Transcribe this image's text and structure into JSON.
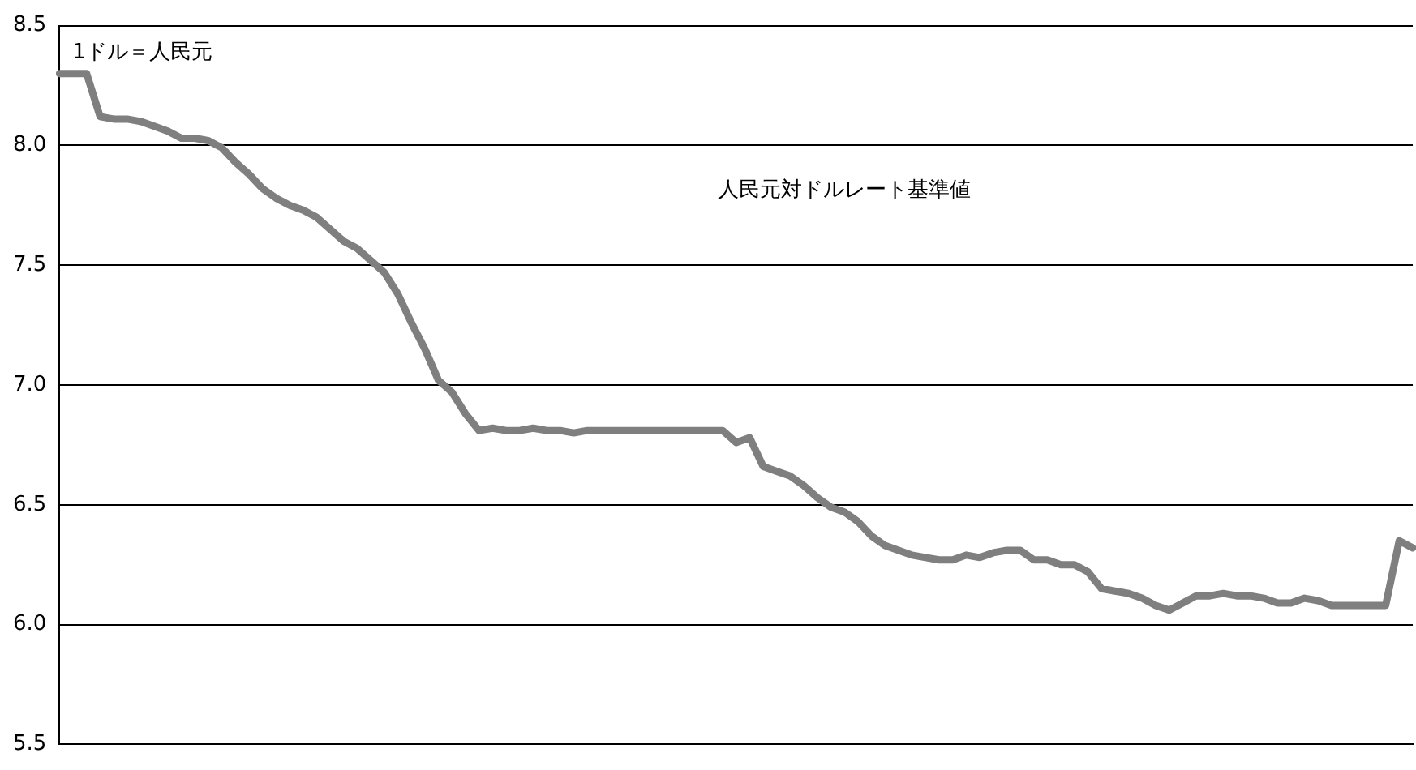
{
  "chart_data": {
    "type": "line",
    "annotations": [
      "1ドル＝人民元",
      "人民元対ドルレート基準値"
    ],
    "categories": [
      null,
      null,
      null,
      null,
      null,
      null,
      null,
      null,
      null,
      null,
      null,
      null,
      null,
      null,
      null,
      null,
      null,
      null,
      null,
      null,
      null,
      null,
      null,
      null,
      null,
      null,
      null,
      null,
      null,
      null,
      null,
      null,
      null,
      null,
      null,
      null,
      null,
      null,
      null,
      null,
      null,
      null,
      null,
      null,
      null,
      null,
      null,
      null,
      null,
      null,
      null,
      null,
      null,
      null,
      null,
      null,
      null,
      null,
      null,
      null,
      null,
      null,
      null,
      null,
      null,
      null,
      null,
      null,
      null,
      null,
      null,
      null,
      null,
      null,
      null,
      null,
      null,
      null,
      null,
      null,
      null,
      null,
      null,
      null,
      null,
      null,
      null,
      null,
      null,
      null,
      null,
      null,
      null,
      null,
      null,
      null,
      null,
      null,
      null,
      null,
      null
    ],
    "series": [
      {
        "color": "#7f7f7f",
        "values": [
          8.3,
          8.3,
          8.3,
          8.12,
          8.11,
          8.11,
          8.1,
          8.08,
          8.06,
          8.03,
          8.03,
          8.02,
          7.99,
          7.93,
          7.88,
          7.82,
          7.78,
          7.75,
          7.73,
          7.7,
          7.65,
          7.6,
          7.57,
          7.52,
          7.47,
          7.38,
          7.26,
          7.15,
          7.02,
          6.97,
          6.88,
          6.81,
          6.82,
          6.81,
          6.81,
          6.82,
          6.81,
          6.81,
          6.8,
          6.81,
          6.81,
          6.81,
          6.81,
          6.81,
          6.81,
          6.81,
          6.81,
          6.81,
          6.81,
          6.81,
          6.76,
          6.78,
          6.66,
          6.64,
          6.62,
          6.58,
          6.53,
          6.49,
          6.47,
          6.43,
          6.37,
          6.33,
          6.31,
          6.29,
          6.28,
          6.27,
          6.27,
          6.29,
          6.28,
          6.3,
          6.31,
          6.31,
          6.27,
          6.27,
          6.25,
          6.25,
          6.22,
          6.15,
          6.14,
          6.13,
          6.11,
          6.08,
          6.06,
          6.09,
          6.12,
          6.12,
          6.13,
          6.12,
          6.12,
          6.11,
          6.09,
          6.09,
          6.11,
          6.1,
          6.08,
          6.08,
          6.08,
          6.08,
          6.08,
          6.35,
          6.32
        ]
      }
    ],
    "ylim": [
      5.5,
      8.5
    ],
    "yticks": [
      5.5,
      {
        "value": 6,
        "label": "6.0"
      },
      6.5,
      {
        "value": 7,
        "label": "7.0"
      },
      7.5,
      {
        "value": 8,
        "label": "8.0"
      },
      8.5
    ],
    "grid": "y",
    "legend": false,
    "marker": "none",
    "line_style": "solid",
    "tick_labels": "y"
  }
}
